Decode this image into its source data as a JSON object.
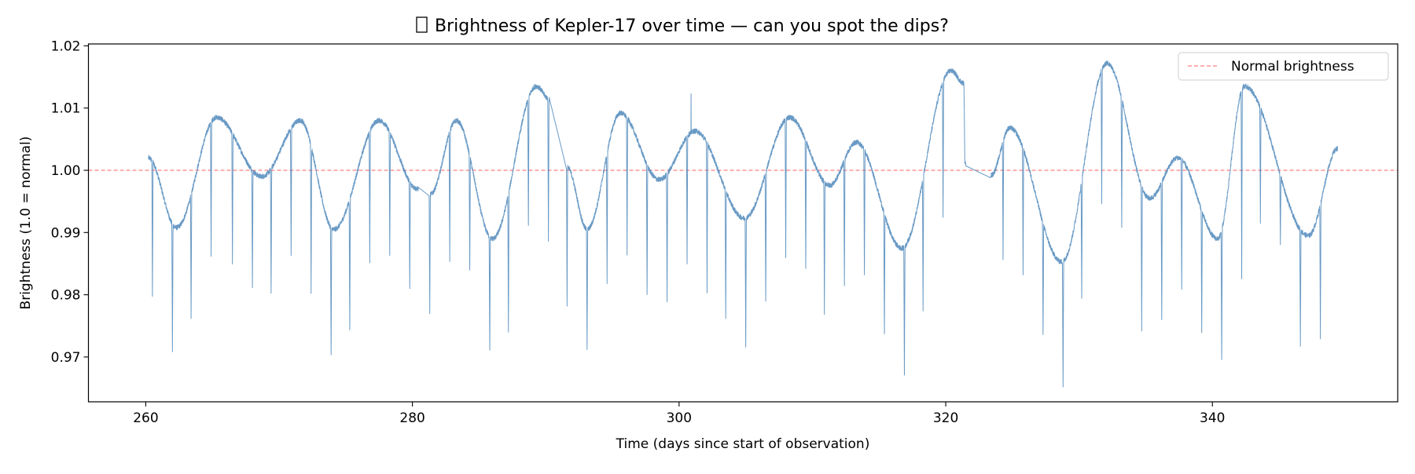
{
  "chart_data": {
    "type": "line",
    "title": "Brightness of Kepler-17 over time — can you spot the dips?",
    "title_missing_glyph": true,
    "xlabel": "Time (days since start of observation)",
    "ylabel": "Brightness (1.0 = normal)",
    "xlim": [
      255.7,
      353.9
    ],
    "ylim": [
      0.9628,
      1.0203
    ],
    "xticks": [
      260,
      280,
      300,
      320,
      340
    ],
    "xtick_labels": [
      "260",
      "280",
      "300",
      "320",
      "340"
    ],
    "yticks": [
      0.97,
      0.98,
      0.99,
      1.0,
      1.01,
      1.02
    ],
    "ytick_labels": [
      "0.97",
      "0.98",
      "0.99",
      "1.00",
      "1.01",
      "1.02"
    ],
    "grid": false,
    "legend": {
      "placement": "top-right",
      "entries": [
        {
          "label": "Normal brightness",
          "style": "dashed",
          "color": "#ff7f7f"
        }
      ]
    },
    "reference_line": {
      "y": 1.0,
      "label": "Normal brightness",
      "color": "#ff7f7f"
    },
    "series": [
      {
        "color": "#4f88bb",
        "baseline_extrema": [
          [
            260.2,
            1.002
          ],
          [
            262.3,
            0.9908
          ],
          [
            265.3,
            1.0085
          ],
          [
            268.7,
            0.999
          ],
          [
            271.6,
            1.008
          ],
          [
            274.1,
            0.9905
          ],
          [
            277.5,
            1.008
          ],
          [
            280.4,
            0.997
          ],
          [
            281.35,
            0.9962
          ],
          [
            283.3,
            1.008
          ],
          [
            286.0,
            0.989
          ],
          [
            289.3,
            1.0135
          ],
          [
            290.25,
            1.0115
          ],
          [
            291.6,
            1.0005
          ],
          [
            293.1,
            0.9905
          ],
          [
            295.6,
            1.0092
          ],
          [
            298.5,
            0.9985
          ],
          [
            301.2,
            1.0063
          ],
          [
            304.9,
            0.9923
          ],
          [
            308.3,
            1.0085
          ],
          [
            311.3,
            0.9976
          ],
          [
            313.3,
            1.0045
          ],
          [
            316.7,
            0.9875
          ],
          [
            320.4,
            1.016
          ],
          [
            321.35,
            1.014
          ],
          [
            321.45,
            1.001
          ],
          [
            323.4,
            0.9992
          ],
          [
            324.8,
            1.0068
          ],
          [
            328.7,
            0.9853
          ],
          [
            332.1,
            1.0172
          ],
          [
            335.3,
            0.9955
          ],
          [
            337.4,
            1.002
          ],
          [
            340.4,
            0.989
          ],
          [
            342.4,
            1.0135
          ],
          [
            347.2,
            0.9895
          ],
          [
            349.4,
            1.0035
          ]
        ],
        "data_gaps": [
          [
            280.45,
            281.25
          ],
          [
            290.3,
            291.55
          ],
          [
            321.5,
            323.35
          ]
        ],
        "transit_minima": [
          [
            260.5,
            0.98
          ],
          [
            262.0,
            0.971
          ],
          [
            263.4,
            0.976
          ],
          [
            264.9,
            0.9865
          ],
          [
            266.5,
            0.985
          ],
          [
            268.0,
            0.9815
          ],
          [
            269.4,
            0.98
          ],
          [
            270.9,
            0.986
          ],
          [
            272.4,
            0.98
          ],
          [
            273.9,
            0.9703
          ],
          [
            275.3,
            0.9745
          ],
          [
            276.8,
            0.9855
          ],
          [
            278.3,
            0.9863
          ],
          [
            279.8,
            0.981
          ],
          [
            281.3,
            0.9773
          ],
          [
            282.8,
            0.9857
          ],
          [
            284.3,
            0.9838
          ],
          [
            285.8,
            0.9713
          ],
          [
            287.2,
            0.974
          ],
          [
            288.7,
            0.991
          ],
          [
            290.2,
            0.9886
          ],
          [
            291.6,
            0.9785
          ],
          [
            293.1,
            0.9715
          ],
          [
            294.6,
            0.982
          ],
          [
            296.1,
            0.9867
          ],
          [
            297.6,
            0.98
          ],
          [
            299.1,
            0.979
          ],
          [
            300.6,
            0.9853
          ],
          [
            302.1,
            0.9807
          ],
          [
            303.5,
            0.9762
          ],
          [
            305.0,
            0.972
          ],
          [
            306.5,
            0.9787
          ],
          [
            308.0,
            0.986
          ],
          [
            309.5,
            0.9846
          ],
          [
            310.9,
            0.9772
          ],
          [
            312.4,
            0.9818
          ],
          [
            313.9,
            0.983
          ],
          [
            315.4,
            0.9737
          ],
          [
            316.9,
            0.9672
          ],
          [
            318.3,
            0.9778
          ],
          [
            319.8,
            0.9923
          ],
          [
            324.3,
            0.986
          ],
          [
            325.8,
            0.9832
          ],
          [
            327.3,
            0.9733
          ],
          [
            328.8,
            0.9653
          ],
          [
            330.2,
            0.9798
          ],
          [
            331.7,
            0.9948
          ],
          [
            333.2,
            0.9912
          ],
          [
            334.7,
            0.9745
          ],
          [
            336.2,
            0.9758
          ],
          [
            337.7,
            0.9808
          ],
          [
            339.2,
            0.974
          ],
          [
            340.7,
            0.9693
          ],
          [
            342.2,
            0.9824
          ],
          [
            343.6,
            0.9918
          ],
          [
            345.1,
            0.9884
          ],
          [
            346.6,
            0.972
          ],
          [
            348.1,
            0.9732
          ]
        ],
        "upward_spikes": [
          [
            300.9,
            1.0123
          ]
        ]
      }
    ]
  }
}
